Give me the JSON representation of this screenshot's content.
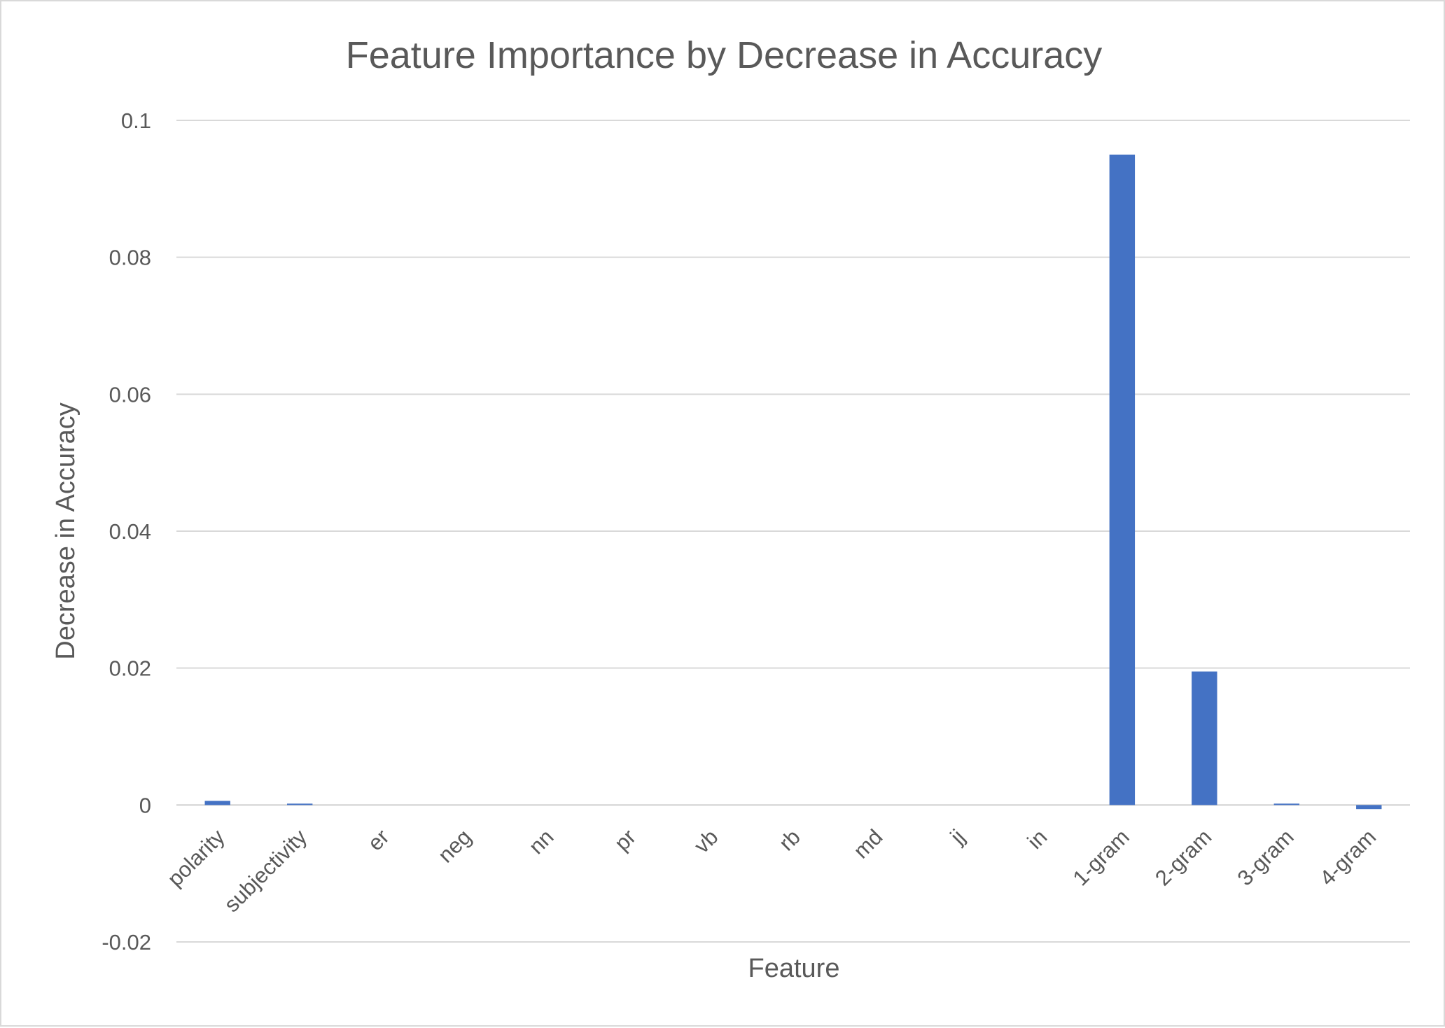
{
  "chart_data": {
    "type": "bar",
    "title": "Feature Importance by Decrease in Accuracy",
    "xlabel": "Feature",
    "ylabel": "Decrease in Accuracy",
    "categories": [
      "polarity",
      "subjectivity",
      "er",
      "neg",
      "nn",
      "pr",
      "vb",
      "rb",
      "md",
      "jj",
      "in",
      "1-gram",
      "2-gram",
      "3-gram",
      "4-gram"
    ],
    "values": [
      0.0006,
      0.0002,
      0,
      0,
      0,
      0,
      0,
      0,
      0,
      0,
      0,
      0.095,
      0.0195,
      0.0002,
      -0.0006
    ],
    "ylim": [
      -0.02,
      0.1
    ],
    "yticks": [
      -0.02,
      0,
      0.02,
      0.04,
      0.06,
      0.08,
      0.1
    ],
    "ytick_labels": [
      "-0.02",
      "0",
      "0.02",
      "0.04",
      "0.06",
      "0.08",
      "0.1"
    ],
    "grid": true,
    "legend": "none",
    "bar_color": "#4472c4"
  }
}
